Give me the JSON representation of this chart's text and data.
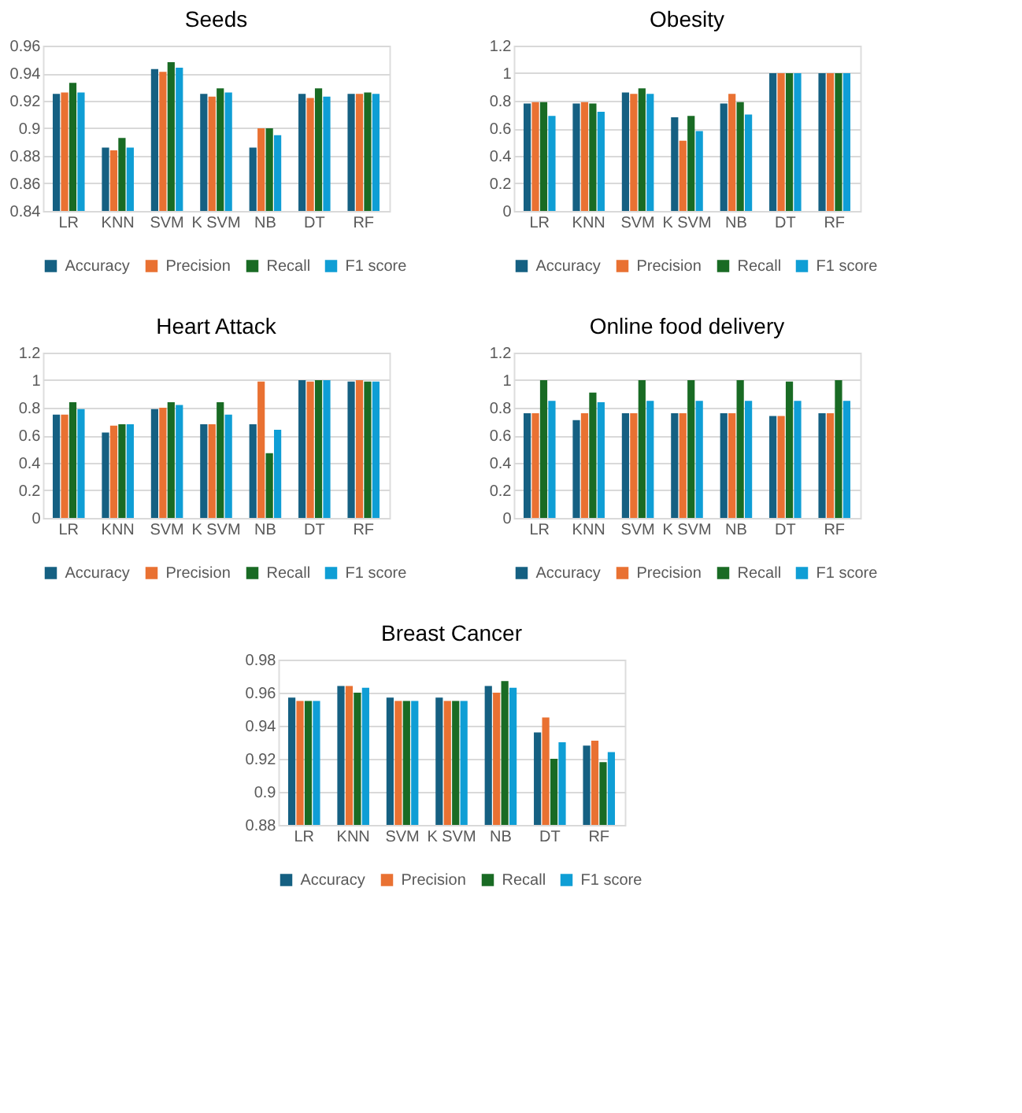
{
  "chart_data": [
    {
      "type": "bar",
      "title": "Seeds",
      "categories": [
        "LR",
        "KNN",
        "SVM",
        "K SVM",
        "NB",
        "DT",
        "RF"
      ],
      "ylim": [
        0.84,
        0.96
      ],
      "yticks": [
        0.84,
        0.86,
        0.88,
        0.9,
        0.92,
        0.94,
        0.96
      ],
      "grid": "y",
      "legend": "bottom",
      "series": [
        {
          "name": "Accuracy",
          "color": "#156082",
          "values": [
            0.925,
            0.886,
            0.943,
            0.925,
            0.886,
            0.925,
            0.925
          ]
        },
        {
          "name": "Precision",
          "color": "#e97132",
          "values": [
            0.926,
            0.884,
            0.941,
            0.923,
            0.9,
            0.922,
            0.925
          ]
        },
        {
          "name": "Recall",
          "color": "#196b24",
          "values": [
            0.933,
            0.893,
            0.948,
            0.929,
            0.9,
            0.929,
            0.926
          ]
        },
        {
          "name": "F1 score",
          "color": "#0f9ed5",
          "values": [
            0.926,
            0.886,
            0.944,
            0.926,
            0.895,
            0.923,
            0.925
          ]
        }
      ]
    },
    {
      "type": "bar",
      "title": "Obesity",
      "categories": [
        "LR",
        "KNN",
        "SVM",
        "K SVM",
        "NB",
        "DT",
        "RF"
      ],
      "ylim": [
        0,
        1.2
      ],
      "yticks": [
        0,
        0.2,
        0.4,
        0.6,
        0.8,
        1,
        1.2
      ],
      "grid": "y",
      "legend": "bottom",
      "series": [
        {
          "name": "Accuracy",
          "color": "#156082",
          "values": [
            0.78,
            0.78,
            0.86,
            0.68,
            0.78,
            1,
            1
          ]
        },
        {
          "name": "Precision",
          "color": "#e97132",
          "values": [
            0.79,
            0.79,
            0.85,
            0.51,
            0.85,
            1,
            1
          ]
        },
        {
          "name": "Recall",
          "color": "#196b24",
          "values": [
            0.79,
            0.78,
            0.89,
            0.69,
            0.79,
            1,
            1
          ]
        },
        {
          "name": "F1 score",
          "color": "#0f9ed5",
          "values": [
            0.69,
            0.72,
            0.85,
            0.58,
            0.7,
            1,
            1
          ]
        }
      ]
    },
    {
      "type": "bar",
      "title": "Heart Attack",
      "categories": [
        "LR",
        "KNN",
        "SVM",
        "K SVM",
        "NB",
        "DT",
        "RF"
      ],
      "ylim": [
        0,
        1.2
      ],
      "yticks": [
        0,
        0.2,
        0.4,
        0.6,
        0.8,
        1,
        1.2
      ],
      "grid": "y",
      "legend": "bottom",
      "series": [
        {
          "name": "Accuracy",
          "color": "#156082",
          "values": [
            0.75,
            0.62,
            0.79,
            0.68,
            0.68,
            1,
            0.99
          ]
        },
        {
          "name": "Precision",
          "color": "#e97132",
          "values": [
            0.75,
            0.67,
            0.8,
            0.68,
            0.99,
            0.99,
            1
          ]
        },
        {
          "name": "Recall",
          "color": "#196b24",
          "values": [
            0.84,
            0.68,
            0.84,
            0.84,
            0.47,
            1,
            0.99
          ]
        },
        {
          "name": "F1 score",
          "color": "#0f9ed5",
          "values": [
            0.79,
            0.68,
            0.82,
            0.75,
            0.64,
            1,
            0.99
          ]
        }
      ]
    },
    {
      "type": "bar",
      "title": "Online food delivery",
      "categories": [
        "LR",
        "KNN",
        "SVM",
        "K SVM",
        "NB",
        "DT",
        "RF"
      ],
      "ylim": [
        0,
        1.2
      ],
      "yticks": [
        0,
        0.2,
        0.4,
        0.6,
        0.8,
        1,
        1.2
      ],
      "grid": "y",
      "legend": "bottom",
      "series": [
        {
          "name": "Accuracy",
          "color": "#156082",
          "values": [
            0.76,
            0.71,
            0.76,
            0.76,
            0.76,
            0.74,
            0.76
          ]
        },
        {
          "name": "Precision",
          "color": "#e97132",
          "values": [
            0.76,
            0.76,
            0.76,
            0.76,
            0.76,
            0.74,
            0.76
          ]
        },
        {
          "name": "Recall",
          "color": "#196b24",
          "values": [
            1,
            0.91,
            1,
            1,
            1,
            0.99,
            1
          ]
        },
        {
          "name": "F1 score",
          "color": "#0f9ed5",
          "values": [
            0.85,
            0.84,
            0.85,
            0.85,
            0.85,
            0.85,
            0.85
          ]
        }
      ]
    },
    {
      "type": "bar",
      "title": "Breast Cancer",
      "categories": [
        "LR",
        "KNN",
        "SVM",
        "K SVM",
        "NB",
        "DT",
        "RF"
      ],
      "ylim": [
        0.88,
        0.98
      ],
      "yticks": [
        0.88,
        0.9,
        0.92,
        0.94,
        0.96,
        0.98
      ],
      "grid": "y",
      "legend": "bottom",
      "series": [
        {
          "name": "Accuracy",
          "color": "#156082",
          "values": [
            0.957,
            0.964,
            0.957,
            0.957,
            0.964,
            0.936,
            0.928
          ]
        },
        {
          "name": "Precision",
          "color": "#e97132",
          "values": [
            0.955,
            0.964,
            0.955,
            0.955,
            0.96,
            0.945,
            0.931
          ]
        },
        {
          "name": "Recall",
          "color": "#196b24",
          "values": [
            0.955,
            0.96,
            0.955,
            0.955,
            0.967,
            0.92,
            0.918
          ]
        },
        {
          "name": "F1 score",
          "color": "#0f9ed5",
          "values": [
            0.955,
            0.963,
            0.955,
            0.955,
            0.963,
            0.93,
            0.924
          ]
        }
      ]
    }
  ]
}
